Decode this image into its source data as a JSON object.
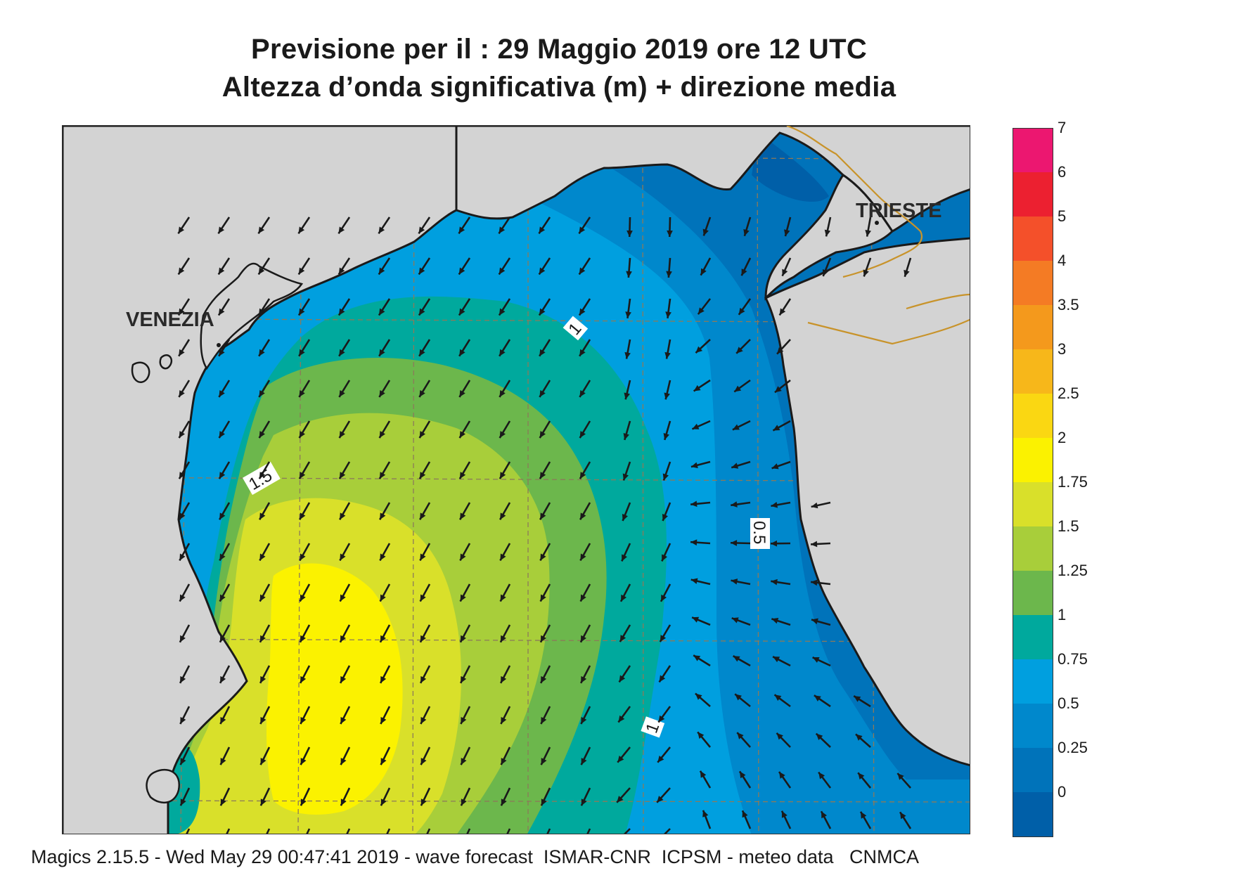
{
  "title_line1": "Previsione per il  :  29   Maggio  2019   ore 12 UTC",
  "title_line2": "Altezza d’onda significativa (m) + direzione media",
  "footer": "Magics 2.15.5 - Wed May 29 00:47:41 2019 - wave forecast  ISMAR-CNR  ICPSM - meteo data   CNMCA",
  "cities": {
    "venezia": "VENEZIA",
    "trieste": "TRIESTE"
  },
  "contour_labels": [
    "1",
    "1.5",
    "0.5",
    "1"
  ],
  "legend": {
    "levels": [
      "7",
      "6",
      "5",
      "4",
      "3.5",
      "3",
      "2.5",
      "2",
      "1.75",
      "1.5",
      "1.25",
      "1",
      "0.75",
      "0.5",
      "0.25",
      "0"
    ],
    "colors": [
      "#ec1770",
      "#ec2030",
      "#f4502a",
      "#f47b24",
      "#f4991c",
      "#f7b71a",
      "#fad712",
      "#fbf200",
      "#d9e02a",
      "#a8ce3a",
      "#6cb74c",
      "#00a99d",
      "#009fdf",
      "#0088cc",
      "#0073ba",
      "#005fa8"
    ]
  },
  "colors": {
    "land": "#d3d3d3",
    "coast": "#1a1a1a",
    "border": "#c8932a",
    "grid": "#8c7a5a",
    "arrow": "#1a1a1a"
  },
  "arrow_field": "mean wave direction arrows"
}
